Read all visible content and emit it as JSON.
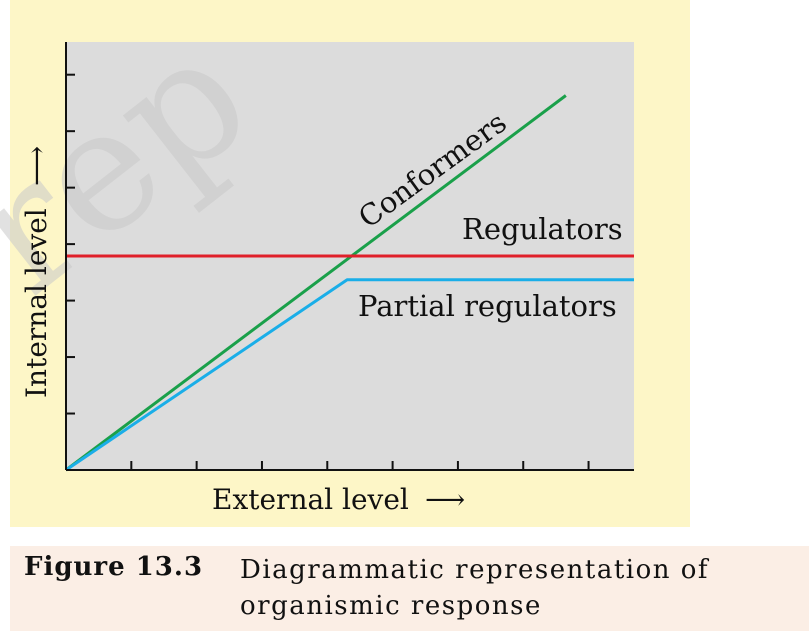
{
  "chart_data": {
    "type": "line",
    "title": "",
    "xlabel": "External level",
    "ylabel": "Internal level",
    "xlim": [
      0,
      10
    ],
    "ylim": [
      0,
      7.2
    ],
    "grid": false,
    "x_ticks": [
      1.15,
      2.3,
      3.45,
      4.6,
      5.75,
      6.9,
      8.05,
      9.2
    ],
    "y_ticks": [
      0.95,
      1.9,
      2.85,
      3.8,
      4.75,
      5.7,
      6.65
    ],
    "series": [
      {
        "name": "Conformers",
        "color": "#1aa04a",
        "points": [
          [
            0,
            0
          ],
          [
            8.8,
            6.3
          ]
        ]
      },
      {
        "name": "Regulators",
        "color": "#e0202a",
        "points": [
          [
            0,
            3.6
          ],
          [
            10,
            3.6
          ]
        ]
      },
      {
        "name": "Partial regulators",
        "color": "#1aaee8",
        "points": [
          [
            0,
            0
          ],
          [
            4.95,
            3.2
          ],
          [
            10,
            3.2
          ]
        ]
      }
    ],
    "colors": {
      "plot_background": "#dcdcdc",
      "panel_background": "#fdf6c7",
      "axis": "#111111"
    }
  },
  "caption": {
    "label": "Figure 13.3",
    "text": "Diagrammatic representation of organismic response"
  },
  "arrow_glyph": "⟶",
  "watermark": "rep"
}
